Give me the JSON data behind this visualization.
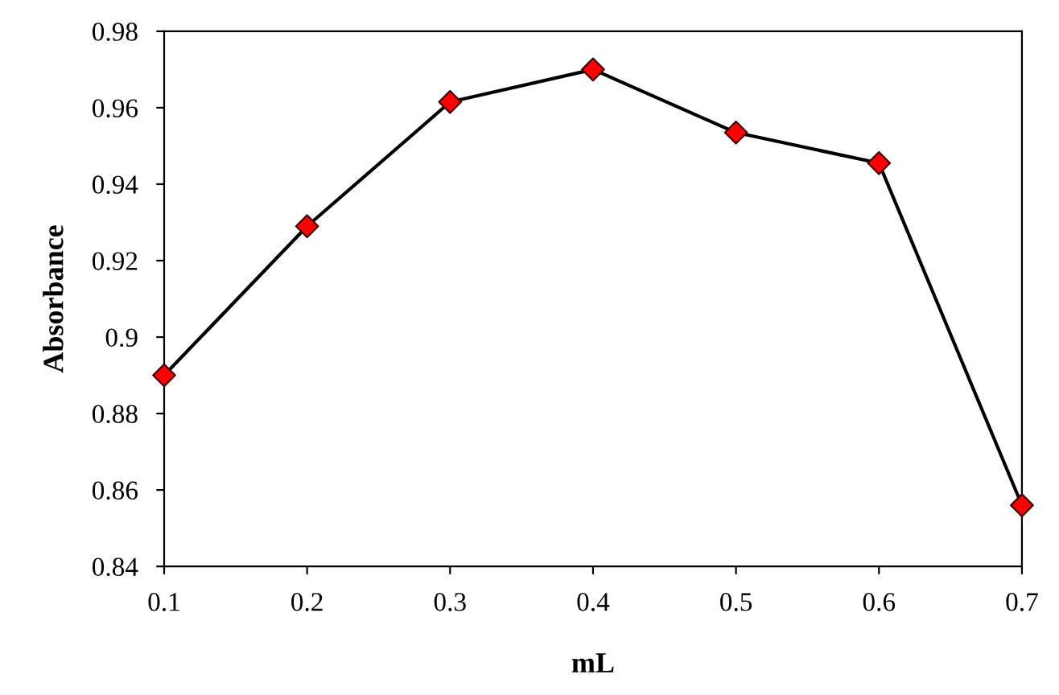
{
  "chart_data": {
    "type": "line",
    "xlabel": "mL",
    "ylabel": "Absorbance",
    "x": [
      0.1,
      0.2,
      0.3,
      0.4,
      0.5,
      0.6,
      0.7
    ],
    "series": [
      {
        "color": "#000000",
        "colors": [
          "#ff0000",
          "#ff0000",
          "#ff0000",
          "#ff0000",
          "#ff0000",
          "#ff0000",
          "#ff0000"
        ],
        "values": [
          0.89,
          0.929,
          0.9615,
          0.97,
          0.9535,
          0.9455,
          0.856
        ]
      }
    ],
    "marker": "diamond",
    "line_style": "solid",
    "xlim": [
      0.1,
      0.7
    ],
    "xticks": [
      0.1,
      0.2,
      0.3,
      0.4,
      0.5,
      0.6,
      0.7
    ],
    "ylim": [
      0.84,
      0.98
    ],
    "yticks": [
      0.84,
      0.86,
      0.88,
      {
        "value": 0.9,
        "label": "0.9"
      },
      0.92,
      0.94,
      0.96,
      0.98
    ],
    "grid": false,
    "legend": false
  }
}
